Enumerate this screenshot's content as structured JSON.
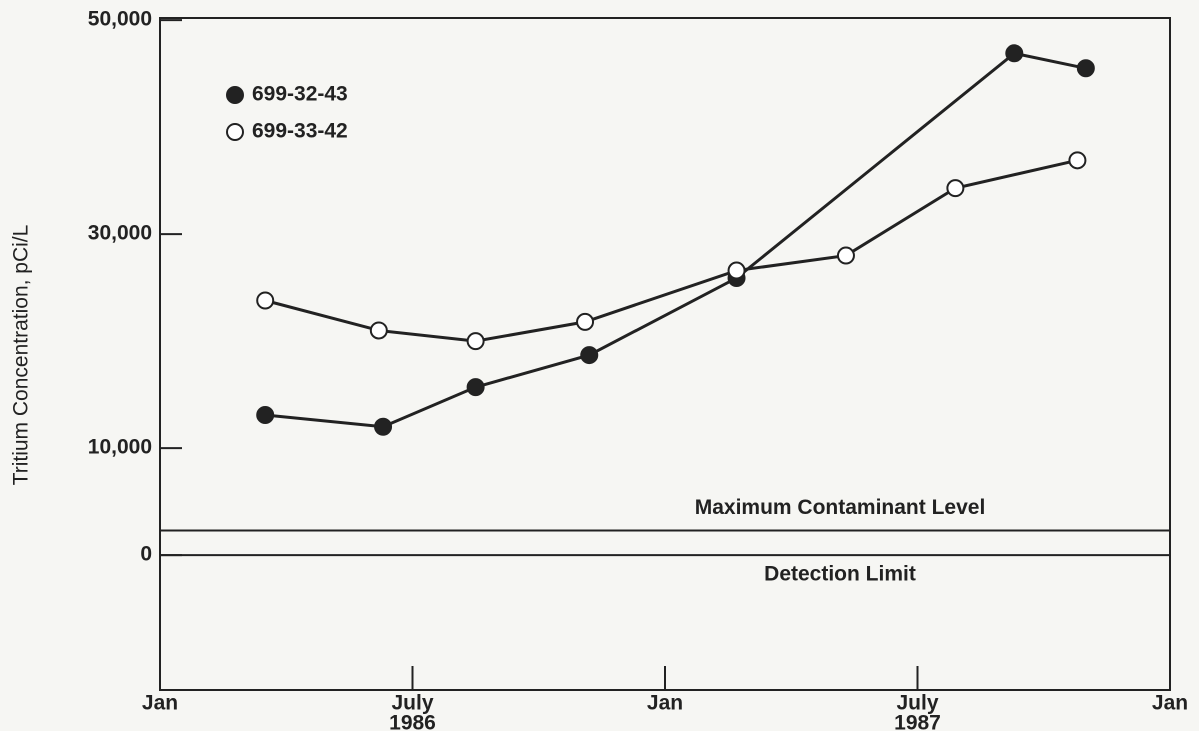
{
  "chart_data": {
    "type": "line",
    "ylabel": "Tritium Concentration, pCi/L",
    "xlim": [
      0,
      24
    ],
    "xticks": [
      {
        "value": 0,
        "label": "Jan"
      },
      {
        "value": 6,
        "label": "July"
      },
      {
        "value": 12,
        "label": "Jan"
      },
      {
        "value": 18,
        "label": "July"
      },
      {
        "value": 24,
        "label": "Jan"
      }
    ],
    "year_labels": [
      {
        "value": 6,
        "label": "1986"
      },
      {
        "value": 18,
        "label": "1987"
      }
    ],
    "ylim": [
      -12600,
      50200
    ],
    "yticks": [
      0,
      {
        "value": 10000,
        "label": "10,000"
      },
      {
        "value": 30000,
        "label": "30,000"
      },
      {
        "value": 50000,
        "label": "50,000"
      }
    ],
    "reference_lines": [
      {
        "label": "Maximum Contaminant Level",
        "value": 2300
      },
      {
        "label": "Detection Limit",
        "value": 0
      }
    ],
    "series": [
      {
        "name": "699-32-43",
        "color": "#222222",
        "marker": "filled",
        "x": [
          2.5,
          5.3,
          7.5,
          10.2,
          13.7,
          20.3,
          22.0
        ],
        "values": [
          13100,
          12000,
          15700,
          18700,
          25900,
          46900,
          45500
        ]
      },
      {
        "name": "699-33-42",
        "color": "#222222",
        "marker": "open",
        "x": [
          2.5,
          5.2,
          7.5,
          10.1,
          13.7,
          16.3,
          18.9,
          21.8
        ],
        "values": [
          23800,
          21000,
          20000,
          21800,
          26600,
          28000,
          34300,
          36900
        ]
      }
    ]
  }
}
